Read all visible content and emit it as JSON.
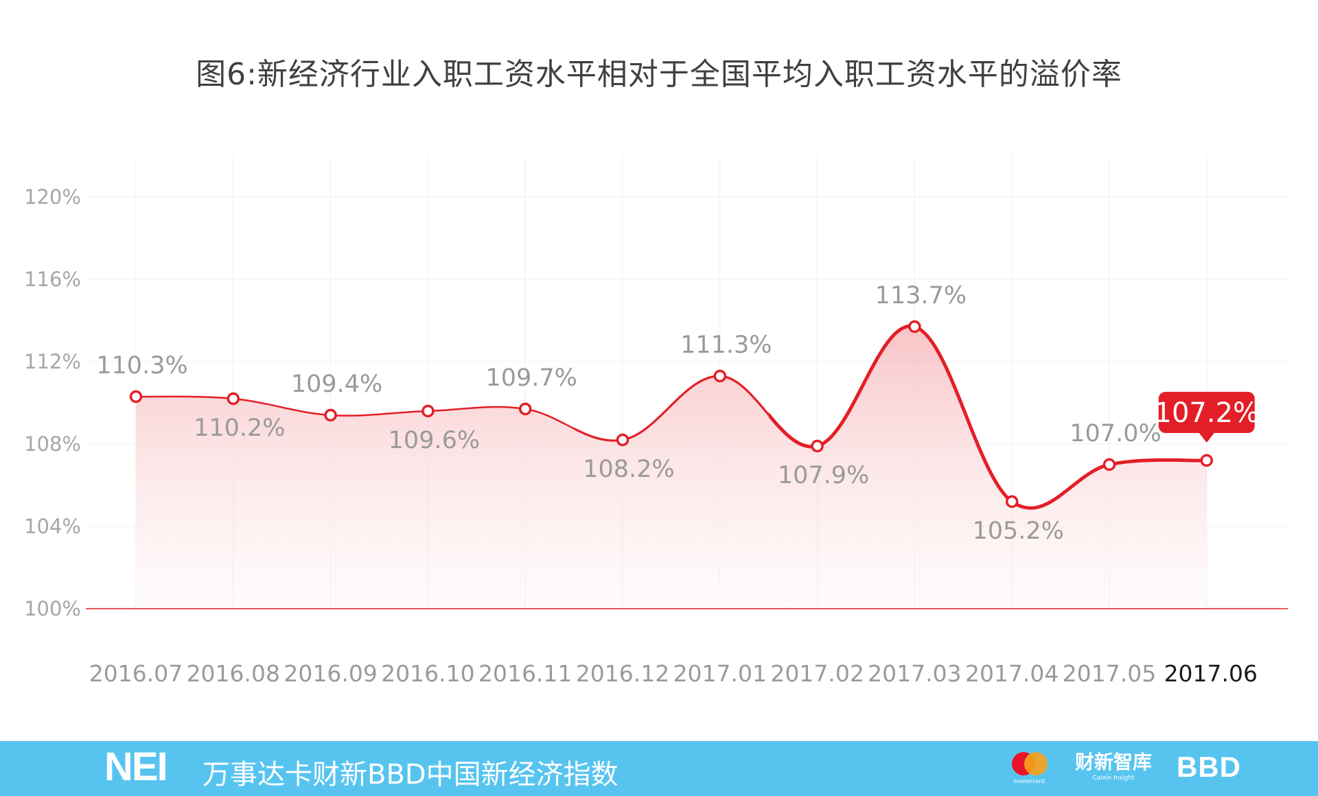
{
  "chart_data": {
    "type": "line",
    "title": "图6:新经济行业入职工资水平相对于全国平均入职工资水平的溢价率",
    "categories": [
      "2016.07",
      "2016.08",
      "2016.09",
      "2016.10",
      "2016.11",
      "2016.12",
      "2017.01",
      "2017.02",
      "2017.03",
      "2017.04",
      "2017.05",
      "2017.06"
    ],
    "values": [
      110.3,
      110.2,
      109.4,
      109.6,
      109.7,
      108.2,
      111.3,
      107.9,
      113.7,
      105.2,
      107.0,
      107.2
    ],
    "data_labels": [
      "110.3%",
      "110.2%",
      "109.4%",
      "109.6%",
      "109.7%",
      "108.2%",
      "111.3%",
      "107.9%",
      "113.7%",
      "105.2%",
      "107.0%",
      "107.2%"
    ],
    "label_positions": [
      "above",
      "below",
      "above",
      "below",
      "above",
      "below",
      "above",
      "below",
      "above",
      "below",
      "above",
      "above"
    ],
    "highlight_index": 11,
    "ylim": [
      100,
      120
    ],
    "yticks": [
      100,
      104,
      108,
      112,
      116,
      120
    ],
    "ytick_labels": [
      "100%",
      "104%",
      "108%",
      "112%",
      "116%",
      "120%"
    ],
    "xlabel": "",
    "ylabel": "",
    "grid": true,
    "colors": {
      "line": "#e41e26",
      "baseline": "#e41e26",
      "label": "#9a9a9a",
      "grid": "#f0f0f0"
    }
  },
  "footer": {
    "logo": "NEI",
    "text": "万事达卡财新BBD中国新经济指数",
    "mastercard_text": "mastercard.",
    "caixin_cn": "财新智库",
    "caixin_en": "Caixin Insight",
    "bbd": "BBD",
    "background": "#57c4f0"
  }
}
